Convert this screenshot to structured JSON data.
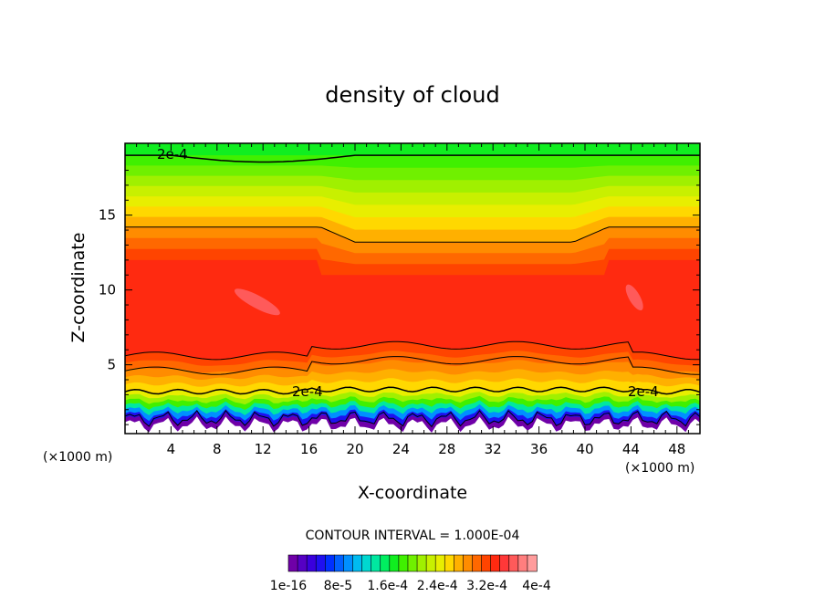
{
  "chart_data": {
    "type": "heatmap",
    "title": "density of cloud",
    "xlabel": "X-coordinate",
    "ylabel": "Z-coordinate",
    "x_unit_left": "(×1000 m)",
    "x_unit_right": "(×1000 m)",
    "xlim": [
      0,
      50
    ],
    "ylim": [
      0.4,
      19.8
    ],
    "x_ticks": [
      4,
      8,
      12,
      16,
      20,
      24,
      28,
      32,
      36,
      40,
      44,
      48
    ],
    "y_ticks": [
      5,
      10,
      15
    ],
    "contour_label_values": [
      "2e-4",
      "2e-4",
      "2e-4"
    ],
    "contour_interval_text": "CONTOUR INTERVAL = 1.000E-04",
    "colorbar_labels": [
      "1e-16",
      "8e-5",
      "1.6e-4",
      "2.4e-4",
      "3.2e-4",
      "4e-4"
    ],
    "colorbar_range": [
      0,
      0.0004
    ],
    "colors": [
      "#6f00a8",
      "#5500c4",
      "#3a00dd",
      "#1f10f0",
      "#0030ff",
      "#0060ff",
      "#0090ff",
      "#00bbf0",
      "#00d8d0",
      "#00e8a0",
      "#00ee60",
      "#10ee20",
      "#40f000",
      "#70f000",
      "#a0f000",
      "#c8f000",
      "#e8ee00",
      "#ffd800",
      "#ffb000",
      "#ff8c00",
      "#ff6800",
      "#ff4400",
      "#ff2a10",
      "#ff3838",
      "#ff5a5a",
      "#ff7e7e",
      "#ff9c9c"
    ]
  }
}
